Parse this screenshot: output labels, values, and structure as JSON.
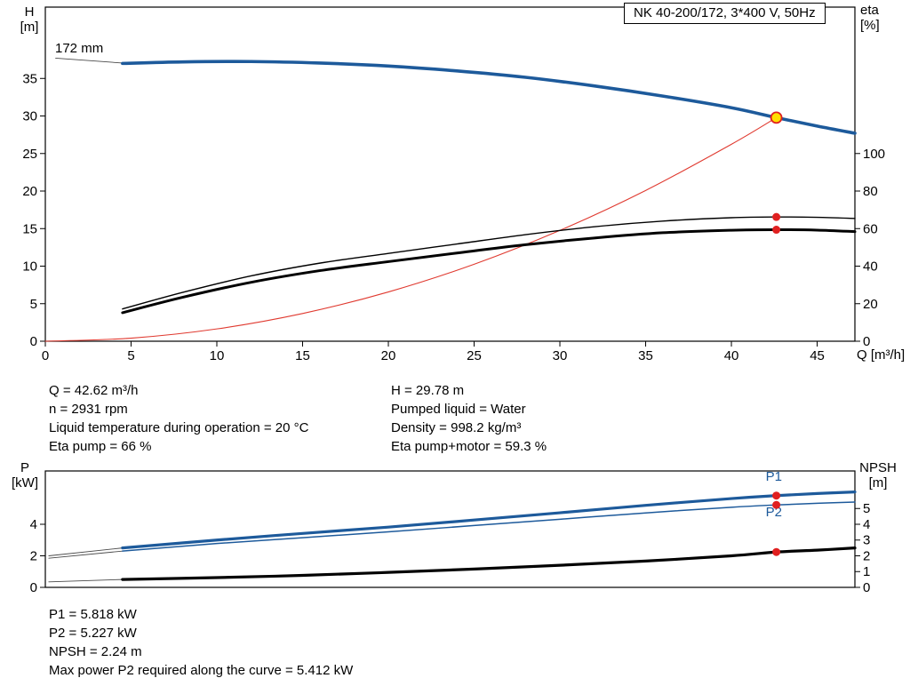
{
  "colors": {
    "curve_blue": "#1d5a9b",
    "marker": "#e02020",
    "duty_fill": "#ffe000",
    "duty_stroke": "#e02020"
  },
  "info_top": {
    "left": [
      "Q = 42.62 m³/h",
      "n = 2931 rpm",
      "Liquid temperature during operation = 20 °C",
      "Eta pump = 66 %"
    ],
    "right": [
      "H = 29.78 m",
      "Pumped liquid = Water",
      "Density = 998.2 kg/m³",
      "Eta pump+motor = 59.3 %"
    ]
  },
  "info_bottom": [
    "P1 = 5.818 kW",
    "P2 = 5.227 kW",
    "NPSH = 2.24 m",
    "Max power P2 required along the curve = 5.412 kW"
  ],
  "chart_data": [
    {
      "type": "line",
      "name": "qh-eta-chart",
      "title": "NK 40-200/172, 3*400 V, 50Hz",
      "curve_label": "172 mm",
      "x_axis": {
        "label": "Q [m³/h]",
        "min": 0,
        "max": 47.2,
        "ticks": [
          0,
          5,
          10,
          15,
          20,
          25,
          30,
          35,
          40,
          45
        ]
      },
      "y_left": {
        "label": "H",
        "unit": "[m]",
        "min": 0,
        "max": 44.5,
        "ticks": [
          0,
          5,
          10,
          15,
          20,
          25,
          30,
          35
        ]
      },
      "y_right": {
        "label": "eta",
        "unit": "[%]",
        "min": 0,
        "max": 178,
        "ticks": [
          0,
          20,
          40,
          60,
          80,
          100
        ]
      },
      "grid": false,
      "series": [
        {
          "name": "impeller-pointer-line",
          "axis": "left",
          "color": "#4a4a4a",
          "width": 0.9,
          "points": [
            [
              0.6,
              37.7
            ],
            [
              4.5,
              37.05
            ]
          ]
        },
        {
          "name": "system-curve",
          "axis": "left",
          "color": "#e03a30",
          "width": 1.1,
          "points": [
            [
              0,
              0
            ],
            [
              5,
              0.41
            ],
            [
              10,
              1.64
            ],
            [
              15,
              3.69
            ],
            [
              20,
              6.56
            ],
            [
              25,
              10.25
            ],
            [
              30,
              14.76
            ],
            [
              35,
              20.08
            ],
            [
              40,
              26.23
            ],
            [
              42.62,
              29.78
            ]
          ]
        },
        {
          "name": "eta-pump-curve",
          "axis": "left",
          "color": "#000000",
          "width": 1.4,
          "points": [
            [
              4.5,
              4.3
            ],
            [
              8,
              6.5
            ],
            [
              12,
              8.7
            ],
            [
              16,
              10.4
            ],
            [
              20,
              11.7
            ],
            [
              24,
              12.95
            ],
            [
              28,
              14.2
            ],
            [
              32,
              15.25
            ],
            [
              36,
              16.0
            ],
            [
              40,
              16.45
            ],
            [
              42.62,
              16.55
            ],
            [
              45,
              16.5
            ],
            [
              47.2,
              16.35
            ]
          ]
        },
        {
          "name": "eta-pump-motor-curve",
          "axis": "left",
          "color": "#000000",
          "width": 3,
          "points": [
            [
              4.5,
              3.8
            ],
            [
              8,
              5.85
            ],
            [
              12,
              7.85
            ],
            [
              16,
              9.4
            ],
            [
              20,
              10.6
            ],
            [
              24,
              11.75
            ],
            [
              28,
              12.85
            ],
            [
              32,
              13.75
            ],
            [
              36,
              14.45
            ],
            [
              40,
              14.78
            ],
            [
              42.62,
              14.85
            ],
            [
              45,
              14.8
            ],
            [
              47.2,
              14.6
            ]
          ]
        },
        {
          "name": "qh-curve-172mm",
          "axis": "left",
          "color": "#1d5a9b",
          "width": 3.6,
          "points": [
            [
              4.5,
              37.0
            ],
            [
              8,
              37.2
            ],
            [
              12,
              37.25
            ],
            [
              16,
              37.05
            ],
            [
              20,
              36.65
            ],
            [
              24,
              36.0
            ],
            [
              28,
              35.15
            ],
            [
              32,
              34.0
            ],
            [
              36,
              32.65
            ],
            [
              40,
              31.1
            ],
            [
              42.62,
              29.78
            ],
            [
              45,
              28.65
            ],
            [
              47.2,
              27.7
            ]
          ]
        }
      ],
      "markers": [
        {
          "name": "eta-pump-marker",
          "style": "dot",
          "x": 42.62,
          "y": 16.55
        },
        {
          "name": "eta-pump-motor-marker",
          "style": "dot",
          "x": 42.62,
          "y": 14.85
        },
        {
          "name": "duty-point",
          "style": "duty",
          "x": 42.62,
          "y": 29.78
        }
      ],
      "labels": []
    },
    {
      "type": "line",
      "name": "power-npsh-chart",
      "x_axis": {
        "label": "",
        "min": 0,
        "max": 47.2,
        "ticks": []
      },
      "y_left": {
        "label": "P",
        "unit": "[kW]",
        "min": 0,
        "max": 7.38,
        "ticks": [
          0,
          2,
          4
        ]
      },
      "y_right": {
        "label": "NPSH",
        "unit": "[m]",
        "min": 0,
        "max": 7.38,
        "ticks": [
          0,
          1,
          2,
          3,
          4,
          5
        ]
      },
      "grid": false,
      "series": [
        {
          "name": "p1-extension",
          "axis": "left",
          "color": "#4a4a4a",
          "width": 0.9,
          "points": [
            [
              0.2,
              2.0
            ],
            [
              4.5,
              2.5
            ]
          ]
        },
        {
          "name": "p2-extension",
          "axis": "left",
          "color": "#4a4a4a",
          "width": 0.9,
          "points": [
            [
              0.2,
              1.85
            ],
            [
              4.5,
              2.3
            ]
          ]
        },
        {
          "name": "npsh-extension",
          "axis": "left",
          "color": "#4a4a4a",
          "width": 0.9,
          "points": [
            [
              0.2,
              0.35
            ],
            [
              4.5,
              0.5
            ]
          ]
        },
        {
          "name": "p2-curve",
          "axis": "left",
          "color": "#1d5a9b",
          "width": 1.5,
          "points": [
            [
              4.5,
              2.3
            ],
            [
              10,
              2.78
            ],
            [
              15,
              3.15
            ],
            [
              20,
              3.52
            ],
            [
              25,
              3.92
            ],
            [
              30,
              4.32
            ],
            [
              35,
              4.72
            ],
            [
              40,
              5.08
            ],
            [
              42.62,
              5.227
            ],
            [
              45,
              5.33
            ],
            [
              47.2,
              5.41
            ]
          ]
        },
        {
          "name": "p1-curve",
          "axis": "left",
          "color": "#1d5a9b",
          "width": 3.2,
          "points": [
            [
              4.5,
              2.5
            ],
            [
              10,
              3.0
            ],
            [
              15,
              3.42
            ],
            [
              20,
              3.82
            ],
            [
              25,
              4.27
            ],
            [
              30,
              4.73
            ],
            [
              35,
              5.2
            ],
            [
              40,
              5.63
            ],
            [
              42.62,
              5.818
            ],
            [
              45,
              5.95
            ],
            [
              47.2,
              6.05
            ]
          ]
        },
        {
          "name": "npsh-curve",
          "axis": "left",
          "color": "#000000",
          "width": 3.2,
          "points": [
            [
              4.5,
              0.5
            ],
            [
              10,
              0.62
            ],
            [
              15,
              0.76
            ],
            [
              20,
              0.95
            ],
            [
              25,
              1.16
            ],
            [
              30,
              1.4
            ],
            [
              35,
              1.67
            ],
            [
              40,
              2.0
            ],
            [
              42.62,
              2.24
            ],
            [
              45,
              2.36
            ],
            [
              47.2,
              2.5
            ]
          ]
        }
      ],
      "markers": [
        {
          "name": "p1-marker",
          "style": "dot",
          "x": 42.62,
          "y": 5.818
        },
        {
          "name": "p2-marker",
          "style": "dot",
          "x": 42.62,
          "y": 5.227
        },
        {
          "name": "npsh-marker",
          "style": "dot",
          "x": 42.62,
          "y": 2.24
        }
      ],
      "labels": [
        {
          "name": "p1-curve-label",
          "text": "P1",
          "x": 42.0,
          "y": 6.75,
          "color": "#1d5a9b"
        },
        {
          "name": "p2-curve-label",
          "text": "P2",
          "x": 42.0,
          "y": 4.5,
          "color": "#1d5a9b"
        }
      ]
    }
  ]
}
